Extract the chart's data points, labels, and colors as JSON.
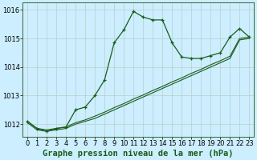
{
  "title": "Graphe pression niveau de la mer (hPa)",
  "background_color": "#cceeff",
  "grid_color": "#bbcccc",
  "line_color": "#1a5c1a",
  "xlim": [
    -0.5,
    23.5
  ],
  "ylim": [
    1011.55,
    1016.25
  ],
  "yticks": [
    1012,
    1013,
    1014,
    1015,
    1016
  ],
  "xticks": [
    0,
    1,
    2,
    3,
    4,
    5,
    6,
    7,
    8,
    9,
    10,
    11,
    12,
    13,
    14,
    15,
    16,
    17,
    18,
    19,
    20,
    21,
    22,
    23
  ],
  "series_main": [
    1012.1,
    1011.85,
    1011.75,
    1011.85,
    1011.9,
    1012.5,
    1012.6,
    1013.0,
    1013.55,
    1014.85,
    1015.3,
    1015.95,
    1015.75,
    1015.65,
    1015.65,
    1014.85,
    1014.35,
    1014.3,
    1014.3,
    1014.4,
    1014.5,
    1015.05,
    1015.35,
    1015.05
  ],
  "series_low1": [
    1012.05,
    1011.8,
    1011.75,
    1011.8,
    1011.85,
    1012.0,
    1012.1,
    1012.2,
    1012.35,
    1012.5,
    1012.65,
    1012.8,
    1012.95,
    1013.1,
    1013.25,
    1013.4,
    1013.55,
    1013.7,
    1013.85,
    1014.0,
    1014.15,
    1014.3,
    1014.95,
    1015.0
  ],
  "series_low2": [
    1012.1,
    1011.85,
    1011.8,
    1011.85,
    1011.9,
    1012.05,
    1012.15,
    1012.28,
    1012.42,
    1012.58,
    1012.72,
    1012.88,
    1013.02,
    1013.18,
    1013.32,
    1013.48,
    1013.62,
    1013.78,
    1013.92,
    1014.08,
    1014.22,
    1014.38,
    1015.0,
    1015.05
  ],
  "tick_fontsize": 6,
  "title_fontsize": 7.5
}
